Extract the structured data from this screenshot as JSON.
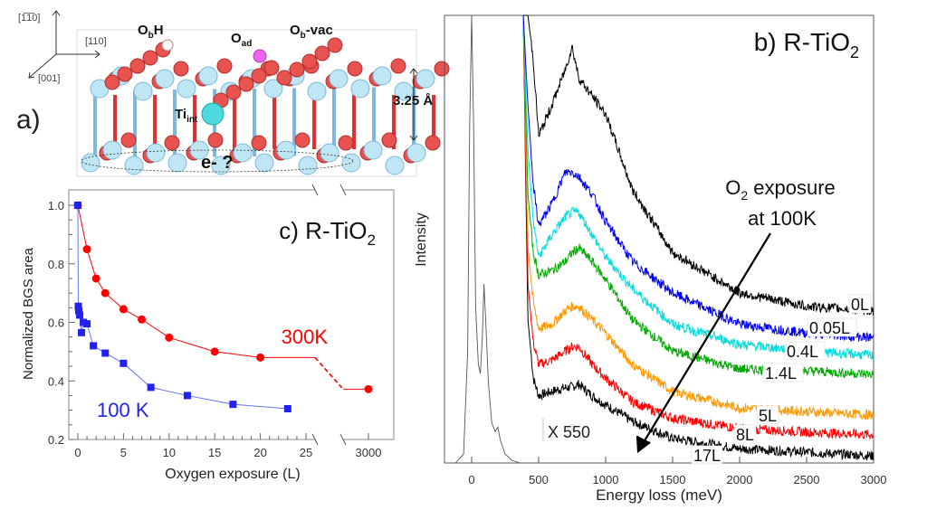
{
  "panel_a": {
    "label": "a)",
    "axes": {
      "vertical": "[1̅1̅0]",
      "horizontal": "[110]",
      "depth": "[001]"
    },
    "annotations": {
      "obh": "ObH",
      "oad": "Oad",
      "obvac": "Ob-vac",
      "tiint": "Tiint",
      "electron": "e- ?",
      "spacing": "3.25 Å"
    },
    "colors": {
      "titanium": "#bfe6f5",
      "oxygen": "#e8534f",
      "adsorbed_oxygen": "#ee66ee",
      "interstitial_ti": "#4dd9e0"
    }
  },
  "chart_data": [
    {
      "type": "line",
      "panel": "b",
      "title": "b) R-TiO2",
      "xlabel": "Energy loss (meV)",
      "ylabel": "Intensity",
      "xlim": [
        -250,
        3000
      ],
      "xticks": [
        0,
        500,
        1000,
        1500,
        2000,
        2500,
        3000
      ],
      "yticks": [],
      "annotation": "O2 exposure at 100K",
      "annotation_lines": [
        "O2 exposure",
        "at 100K"
      ],
      "scale_note": "X 550",
      "elastic": {
        "x": [
          -120,
          -60,
          -30,
          -15,
          0,
          15,
          30,
          50,
          65,
          80,
          92,
          105,
          125,
          150,
          175,
          195,
          215,
          250,
          300,
          360
        ],
        "y": [
          0,
          2,
          25,
          75,
          100,
          75,
          35,
          22,
          20,
          28,
          40,
          32,
          18,
          9,
          7,
          8,
          5,
          2,
          0.6,
          0
        ]
      },
      "x": [
        385,
        420,
        460,
        500,
        600,
        700,
        750,
        800,
        900,
        1000,
        1200,
        1500,
        2000,
        2500,
        3000
      ],
      "series": [
        {
          "name": "0L",
          "color": "#000000",
          "values": [
            100,
            100,
            90,
            73,
            80,
            88,
            93,
            86,
            82,
            78,
            61,
            47,
            38,
            35,
            34
          ]
        },
        {
          "name": "0.05L",
          "color": "#0000ee",
          "values": [
            100,
            80,
            62,
            53,
            58,
            65,
            65,
            64,
            60,
            54,
            45,
            38,
            31,
            29,
            28
          ]
        },
        {
          "name": "0.4L",
          "color": "#00dddd",
          "values": [
            100,
            70,
            54,
            46,
            51,
            55,
            56,
            56,
            51,
            46,
            39,
            31,
            26.5,
            25,
            24
          ]
        },
        {
          "name": "1.4L",
          "color": "#00aa00",
          "values": [
            100,
            60,
            47,
            42,
            43,
            45,
            47,
            48,
            45,
            41,
            32,
            25,
            21,
            20.6,
            19.8
          ]
        },
        {
          "name": "5L",
          "color": "#ff9900",
          "values": [
            100,
            48,
            36,
            30,
            31,
            34,
            35,
            35,
            32,
            29,
            22,
            16,
            12.3,
            11.5,
            10.7
          ]
        },
        {
          "name": "8L",
          "color": "#ff0000",
          "values": [
            100,
            40,
            27,
            22,
            23,
            25,
            26,
            26,
            22,
            19,
            13.7,
            10,
            7.7,
            6.9,
            6.3
          ]
        },
        {
          "name": "17L",
          "color": "#000000",
          "values": [
            100,
            32,
            19,
            15,
            16,
            16.8,
            17,
            17.6,
            15,
            13,
            9.3,
            5.5,
            3.2,
            2.4,
            1.6
          ]
        }
      ]
    },
    {
      "type": "line",
      "panel": "c",
      "title": "c) R-TiO2",
      "xlabel": "Oxygen exposure (L)",
      "ylabel": "Normalized BGS area",
      "ylim": [
        0.2,
        1.05
      ],
      "xlim": [
        -1,
        26
      ],
      "x_break": "26 to 3000",
      "xticks": [
        "0",
        "5",
        "10",
        "15",
        "20",
        "25",
        "3000"
      ],
      "yticks": [
        "0.2",
        "0.4",
        "0.6",
        "0.8",
        "1.0"
      ],
      "series": [
        {
          "name": "300K",
          "color": "#ff0000",
          "marker": "circle",
          "x": [
            0,
            1,
            2,
            3,
            5,
            7,
            10,
            15,
            20,
            3000
          ],
          "y": [
            1.0,
            0.85,
            0.75,
            0.7,
            0.645,
            0.61,
            0.548,
            0.5,
            0.48,
            0.372
          ]
        },
        {
          "name": "100 K",
          "color": "#2222ee",
          "marker": "square",
          "x": [
            0,
            0.05,
            0.1,
            0.2,
            0.4,
            0.6,
            1,
            1.7,
            3,
            5,
            8,
            12,
            17,
            23
          ],
          "y": [
            1.0,
            0.655,
            0.64,
            0.625,
            0.565,
            0.6,
            0.595,
            0.52,
            0.495,
            0.46,
            0.378,
            0.35,
            0.32,
            0.305
          ]
        }
      ]
    }
  ]
}
